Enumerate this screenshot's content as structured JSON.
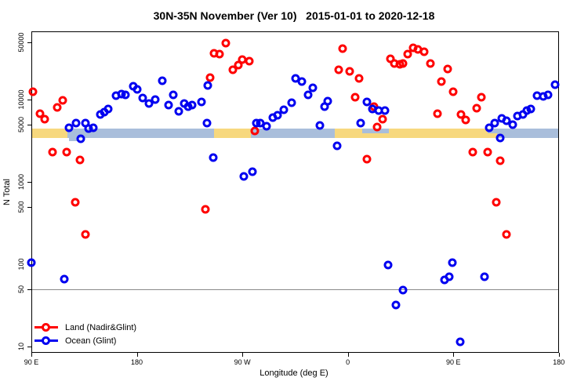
{
  "title": "30N-35N November (Ver 10)   2015-01-01 to 2020-12-18",
  "axes": {
    "x_label": "Longitude (deg E)",
    "y_label": "N Total",
    "y_scale": "log",
    "y_ticks": [
      {
        "value": 50000,
        "label": "50000"
      },
      {
        "value": 10000,
        "label": "10000"
      },
      {
        "value": 5000,
        "label": "5000"
      },
      {
        "value": 1000,
        "label": "1000"
      },
      {
        "value": 500,
        "label": "500"
      },
      {
        "value": 100,
        "label": "100"
      },
      {
        "value": 50,
        "label": "50"
      },
      {
        "value": 10,
        "label": "10"
      }
    ],
    "x_ticks": [
      {
        "lon": 90,
        "label": "90 E"
      },
      {
        "lon": 180,
        "label": "180"
      },
      {
        "lon": 270,
        "label": "90 W"
      },
      {
        "lon": 360,
        "label": "0"
      },
      {
        "lon": 450,
        "label": "90 E"
      },
      {
        "lon": 540,
        "label": "180"
      }
    ],
    "x_range_deg": [
      90,
      540
    ],
    "y_range": [
      10,
      50000
    ],
    "reference_line_value": 50
  },
  "colors": {
    "land_series": "#FF0000",
    "ocean_series": "#0000F0",
    "band_land": "#F7D87E",
    "band_ocean": "#A9BEDB",
    "reference_line": "#8a8a8a",
    "axis": "#000000"
  },
  "legend": {
    "items": [
      {
        "label": "Land (Nadir&Glint)",
        "series": "land"
      },
      {
        "label": "Ocean (Glint)",
        "series": "ocean"
      }
    ]
  },
  "surface_band": {
    "description": "land/ocean strip along 30N-35N",
    "segments": [
      {
        "from": 90,
        "to": 121,
        "surface": "land",
        "part": "full"
      },
      {
        "from": 121,
        "to": 246,
        "surface": "ocean",
        "part": "full"
      },
      {
        "from": 122,
        "to": 130,
        "surface": "ocean",
        "part": "below"
      },
      {
        "from": 246,
        "to": 277,
        "surface": "land",
        "part": "full"
      },
      {
        "from": 277,
        "to": 349,
        "surface": "ocean",
        "part": "full"
      },
      {
        "from": 349,
        "to": 372,
        "surface": "land",
        "part": "full"
      },
      {
        "from": 372,
        "to": 395,
        "surface": "ocean",
        "part": "top"
      },
      {
        "from": 372,
        "to": 395,
        "surface": "land",
        "part": "bottom"
      },
      {
        "from": 395,
        "to": 479,
        "surface": "land",
        "part": "full"
      },
      {
        "from": 479,
        "to": 487,
        "surface": "ocean",
        "part": "top"
      },
      {
        "from": 479,
        "to": 487,
        "surface": "land",
        "part": "bottom"
      },
      {
        "from": 487,
        "to": 540,
        "surface": "ocean",
        "part": "full"
      }
    ]
  },
  "chart_data": {
    "type": "scatter",
    "title": "30N-35N November (Ver 10)   2015-01-01 to 2020-12-18",
    "xlabel": "Longitude (deg E)",
    "ylabel": "N Total",
    "xlim_deg_wrapped": [
      90,
      540
    ],
    "ylim": [
      10,
      50000
    ],
    "grid": false,
    "legend_position": "bottom-left",
    "series": [
      {
        "name": "Land (Nadir&Glint)",
        "color": "#FF0000",
        "points": [
          [
            91.3,
            12400
          ],
          [
            97.4,
            6740
          ],
          [
            101.4,
            5780
          ],
          [
            108.1,
            2300
          ],
          [
            112.1,
            8030
          ],
          [
            116.7,
            9770
          ],
          [
            120.1,
            2300
          ],
          [
            127.4,
            560
          ],
          [
            131.5,
            1850
          ],
          [
            136.1,
            232
          ],
          [
            238.4,
            460
          ],
          [
            242.5,
            18500
          ],
          [
            245.8,
            36500
          ],
          [
            250.5,
            35600
          ],
          [
            255.8,
            48500
          ],
          [
            261.8,
            23000
          ],
          [
            266.5,
            26200
          ],
          [
            269.9,
            30600
          ],
          [
            275.9,
            29300
          ],
          [
            280.6,
            4160
          ],
          [
            352.1,
            23000
          ],
          [
            355.5,
            41700
          ],
          [
            361.5,
            22000
          ],
          [
            366.2,
            10700
          ],
          [
            369.5,
            18100
          ],
          [
            376.2,
            1870
          ],
          [
            382.2,
            8230
          ],
          [
            384.9,
            4640
          ],
          [
            389.6,
            5780
          ],
          [
            396.3,
            31300
          ],
          [
            399.6,
            27400
          ],
          [
            404.3,
            26800
          ],
          [
            407.0,
            27400
          ],
          [
            411.0,
            35600
          ],
          [
            415.7,
            42500
          ],
          [
            419.7,
            40700
          ],
          [
            425.0,
            38100
          ],
          [
            430.4,
            27400
          ],
          [
            436.4,
            6740
          ],
          [
            439.7,
            16600
          ],
          [
            445.1,
            23500
          ],
          [
            449.8,
            12400
          ],
          [
            456.4,
            6590
          ],
          [
            460.4,
            5650
          ],
          [
            466.5,
            2300
          ],
          [
            469.8,
            7850
          ],
          [
            473.8,
            10600
          ],
          [
            479.2,
            2300
          ],
          [
            486.5,
            560
          ],
          [
            489.9,
            1810
          ],
          [
            495.2,
            232
          ]
        ]
      },
      {
        "name": "Ocean (Glint)",
        "color": "#0000F0",
        "points": [
          [
            90.0,
            105
          ],
          [
            118.1,
            66
          ],
          [
            122.1,
            4540
          ],
          [
            128.1,
            5180
          ],
          [
            132.1,
            3340
          ],
          [
            136.1,
            5180
          ],
          [
            138.8,
            4450
          ],
          [
            142.8,
            4540
          ],
          [
            148.8,
            6590
          ],
          [
            152.2,
            7040
          ],
          [
            155.5,
            7690
          ],
          [
            162.2,
            11200
          ],
          [
            166.9,
            11700
          ],
          [
            170.2,
            11400
          ],
          [
            176.9,
            14500
          ],
          [
            180.3,
            13300
          ],
          [
            185.0,
            10400
          ],
          [
            190.3,
            8960
          ],
          [
            195.6,
            10000
          ],
          [
            201.7,
            16900
          ],
          [
            207.0,
            8570
          ],
          [
            211.0,
            11400
          ],
          [
            215.7,
            7190
          ],
          [
            220.4,
            8960
          ],
          [
            223.7,
            8200
          ],
          [
            227.1,
            8570
          ],
          [
            235.1,
            9360
          ],
          [
            239.8,
            5180
          ],
          [
            240.4,
            14800
          ],
          [
            245.1,
            1970
          ],
          [
            271.2,
            1170
          ],
          [
            278.6,
            1330
          ],
          [
            281.9,
            5180
          ],
          [
            285.3,
            5180
          ],
          [
            290.6,
            4740
          ],
          [
            296.0,
            6040
          ],
          [
            300.0,
            6460
          ],
          [
            305.3,
            7520
          ],
          [
            312.0,
            9160
          ],
          [
            315.3,
            18100
          ],
          [
            320.7,
            16600
          ],
          [
            326.0,
            11400
          ],
          [
            330.0,
            13900
          ],
          [
            336.1,
            4850
          ],
          [
            340.1,
            8200
          ],
          [
            342.7,
            9570
          ],
          [
            350.8,
            2740
          ],
          [
            370.8,
            5180
          ],
          [
            376.2,
            9360
          ],
          [
            380.9,
            7690
          ],
          [
            386.2,
            7360
          ],
          [
            391.6,
            7360
          ],
          [
            394.3,
            98
          ],
          [
            401.0,
            32
          ],
          [
            407.0,
            48
          ],
          [
            442.4,
            64
          ],
          [
            446.4,
            70
          ],
          [
            449.1,
            104
          ],
          [
            455.8,
            11.5
          ],
          [
            476.5,
            70
          ],
          [
            480.5,
            4540
          ],
          [
            485.2,
            5180
          ],
          [
            489.9,
            3410
          ],
          [
            491.2,
            5900
          ],
          [
            495.2,
            5530
          ],
          [
            500.6,
            4960
          ],
          [
            504.6,
            6310
          ],
          [
            509.3,
            6590
          ],
          [
            512.6,
            7360
          ],
          [
            516.0,
            7690
          ],
          [
            521.3,
            11200
          ],
          [
            526.7,
            10900
          ],
          [
            530.7,
            11400
          ],
          [
            536.7,
            15200
          ]
        ]
      }
    ]
  }
}
